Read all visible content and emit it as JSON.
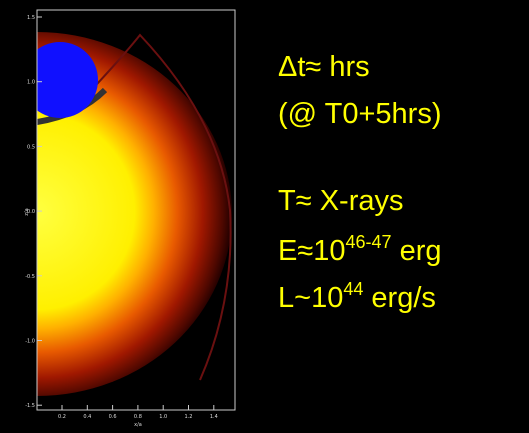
{
  "figure": {
    "y_axis_label": "z/a",
    "x_axis_label": "x/a",
    "yticks": [
      "1.5",
      "1.0",
      "0.5",
      "0.0",
      "-0.5",
      "-1.0",
      "-1.5"
    ],
    "xticks": [
      "0.2",
      "0.4",
      "0.6",
      "0.8",
      "1.0",
      "1.2",
      "1.4"
    ]
  },
  "notes": {
    "duration": "Δt≈ hrs",
    "epoch": "(@ T0+5hrs)",
    "temperature": "T≈ X-rays",
    "energy": {
      "base": "E≈10",
      "exponent": "46-47",
      "unit": " erg"
    },
    "luminosity": {
      "base": "L~10",
      "exponent": "44",
      "unit": " erg/s"
    }
  }
}
